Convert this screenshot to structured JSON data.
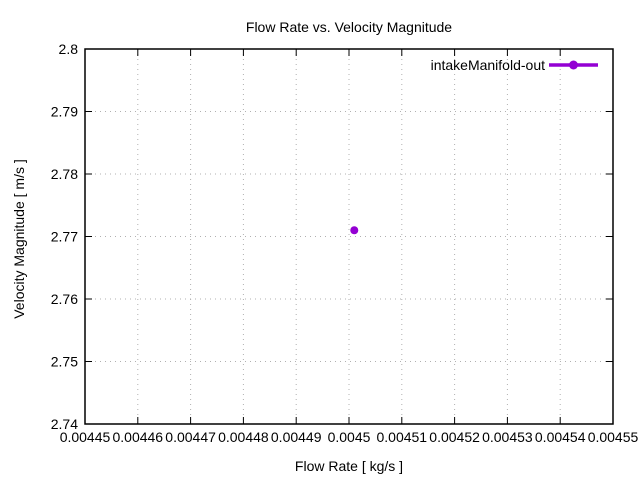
{
  "colors": {
    "background": "#ffffff",
    "axis": "#000000",
    "grid": "#b0b0b0",
    "series_purple": "#9400d3"
  },
  "chart_data": {
    "type": "scatter",
    "title": "Flow Rate vs. Velocity Magnitude",
    "xlabel": "Flow Rate [ kg/s ]",
    "ylabel": "Velocity Magnitude [ m/s ]",
    "xlim": [
      0.00445,
      0.00455
    ],
    "ylim": [
      2.74,
      2.8
    ],
    "xticks": [
      0.00445,
      0.00446,
      0.00447,
      0.00448,
      0.00449,
      0.0045,
      0.00451,
      0.00452,
      0.00453,
      0.00454,
      0.00455
    ],
    "xtick_labels": [
      "0.00445",
      "0.00446",
      "0.00447",
      "0.00448",
      "0.00449",
      "0.0045",
      "0.00451",
      "0.00452",
      "0.00453",
      "0.00454",
      "0.00455"
    ],
    "yticks": [
      2.74,
      2.75,
      2.76,
      2.77,
      2.78,
      2.79,
      2.8
    ],
    "ytick_labels": [
      "2.74",
      "2.75",
      "2.76",
      "2.77",
      "2.78",
      "2.79",
      "2.8"
    ],
    "grid": true,
    "legend_position": "top-right-inside",
    "series": [
      {
        "name": "intakeManifold-out",
        "color": "#9400d3",
        "style": "linespoints",
        "marker": "filled-circle",
        "points": [
          {
            "x": 0.004501,
            "y": 2.771
          }
        ]
      }
    ]
  }
}
